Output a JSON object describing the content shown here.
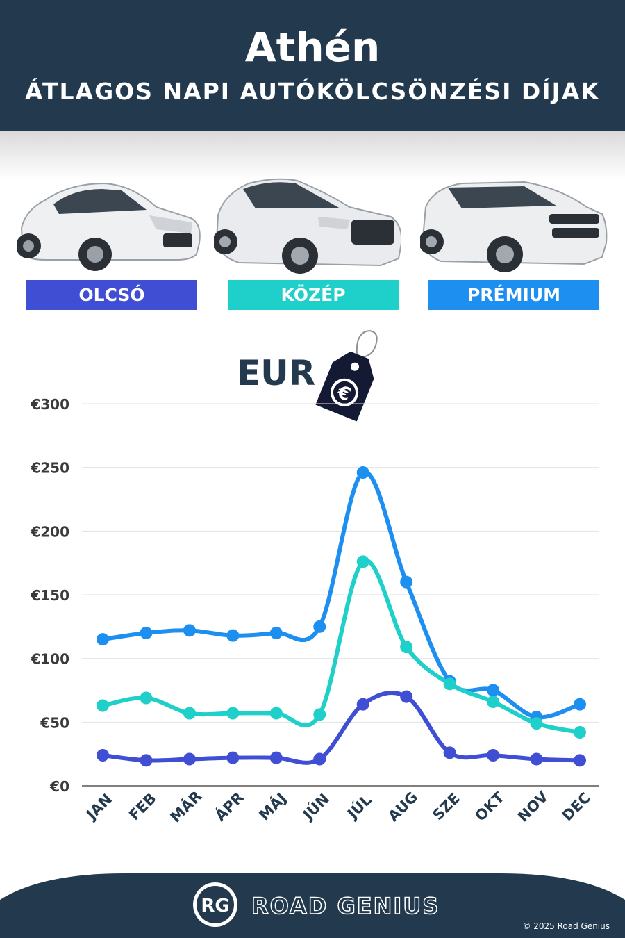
{
  "header": {
    "title": "Athén",
    "subtitle": "ÁTLAGOS NAPI AUTÓKÖLCSÖNZÉSI DÍJAK"
  },
  "categories": [
    {
      "label": "OLCSÓ",
      "color": "#3f4ed3"
    },
    {
      "label": "KÖZÉP",
      "color": "#1fcfc9"
    },
    {
      "label": "PRÉMIUM",
      "color": "#1d8ff0"
    }
  ],
  "currency": {
    "label": "EUR",
    "icon": "euro-price-tag-icon",
    "symbol": "€"
  },
  "chart_data": {
    "type": "line",
    "categories": [
      "JAN",
      "FEB",
      "MÁR",
      "ÁPR",
      "MÁJ",
      "JÚN",
      "JÚL",
      "AUG",
      "SZE",
      "OKT",
      "NOV",
      "DEC"
    ],
    "series": [
      {
        "name": "PRÉMIUM",
        "color": "#1d8ff0",
        "values": [
          115,
          120,
          122,
          118,
          120,
          125,
          246,
          160,
          82,
          75,
          54,
          64
        ]
      },
      {
        "name": "KÖZÉP",
        "color": "#1fcfc9",
        "values": [
          63,
          69,
          57,
          57,
          57,
          56,
          176,
          109,
          80,
          66,
          49,
          42
        ]
      },
      {
        "name": "OLCSÓ",
        "color": "#3f4ed3",
        "values": [
          24,
          20,
          21,
          22,
          22,
          21,
          64,
          70,
          26,
          24,
          21,
          20
        ]
      }
    ],
    "yticks": [
      "€0",
      "€50",
      "€100",
      "€150",
      "€200",
      "€250",
      "€300"
    ],
    "ylim": [
      0,
      300
    ],
    "grid": true
  },
  "footer": {
    "logo": "RG",
    "brand": "ROAD GENIUS",
    "copyright": "© 2025 Road Genius"
  }
}
